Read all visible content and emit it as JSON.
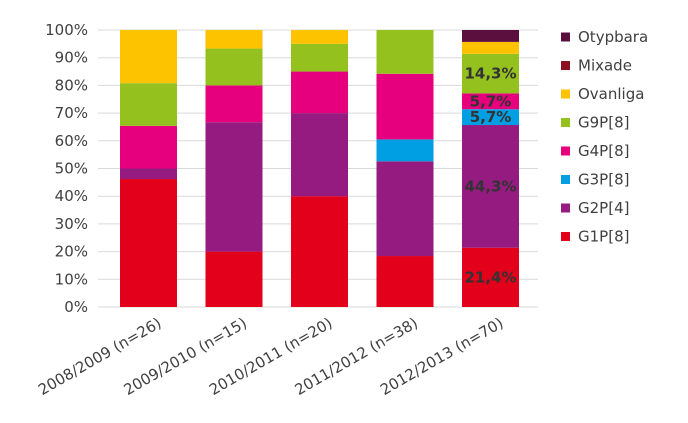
{
  "chart_data": {
    "type": "bar",
    "stacked": true,
    "percent_stacked": true,
    "categories": [
      "2008/2009 (n=26)",
      "2009/2010 (n=15)",
      "2010/2011 (n=20)",
      "2011/2012 (n=38)",
      "2012/2013 (n=70)"
    ],
    "ylim": [
      0,
      100
    ],
    "yticks": [
      "0%",
      "10%",
      "20%",
      "30%",
      "40%",
      "50%",
      "60%",
      "70%",
      "80%",
      "90%",
      "100%"
    ],
    "grid": true,
    "legend_position": "right",
    "series": [
      {
        "name": "G1P[8]",
        "color": "#e3001b",
        "values": [
          46.2,
          20.0,
          40.0,
          18.4,
          21.4
        ]
      },
      {
        "name": "G2P[4]",
        "color": "#951b81",
        "values": [
          3.8,
          46.7,
          30.0,
          34.2,
          44.3
        ]
      },
      {
        "name": "G3P[8]",
        "color": "#009fe3",
        "values": [
          0,
          0,
          0,
          7.9,
          5.7
        ]
      },
      {
        "name": "G4P[8]",
        "color": "#e6007e",
        "values": [
          15.4,
          13.3,
          15.0,
          23.7,
          5.7
        ]
      },
      {
        "name": "G9P[8]",
        "color": "#95c11f",
        "values": [
          15.4,
          13.3,
          10.0,
          15.8,
          14.3
        ]
      },
      {
        "name": "Ovanliga",
        "color": "#fdc300",
        "values": [
          19.2,
          6.7,
          5.0,
          0,
          4.3
        ]
      },
      {
        "name": "Mixade",
        "color": "#8b1120",
        "values": [
          0,
          0,
          0,
          0,
          0
        ]
      },
      {
        "name": "Otypbara",
        "color": "#5b0f3f",
        "values": [
          0,
          0,
          0,
          0,
          4.3
        ]
      }
    ],
    "legend_order": [
      "Otypbara",
      "Mixade",
      "Ovanliga",
      "G9P[8]",
      "G4P[8]",
      "G3P[8]",
      "G2P[4]",
      "G1P[8]"
    ],
    "annotations": [
      {
        "category_index": 4,
        "series": "G1P[8]",
        "text": "21,4%"
      },
      {
        "category_index": 4,
        "series": "G2P[4]",
        "text": "44,3%"
      },
      {
        "category_index": 4,
        "series": "G3P[8]",
        "text": "5,7%"
      },
      {
        "category_index": 4,
        "series": "G4P[8]",
        "text": "5,7%"
      },
      {
        "category_index": 4,
        "series": "G9P[8]",
        "text": "14,3%"
      }
    ]
  }
}
